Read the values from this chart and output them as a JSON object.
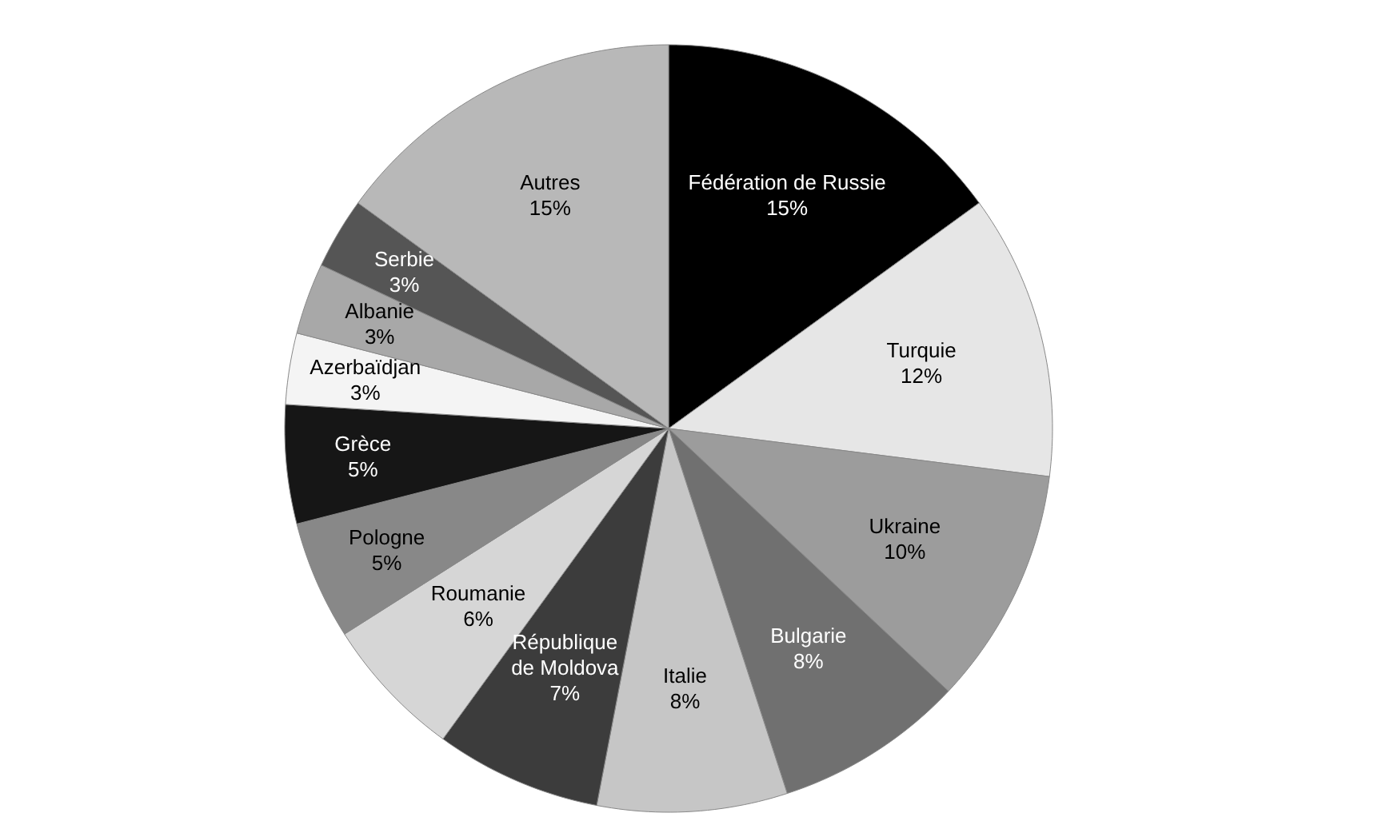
{
  "chart_data": {
    "type": "pie",
    "categories": [
      "Fédération de Russie",
      "Turquie",
      "Ukraine",
      "Bulgarie",
      "Italie",
      "République de Moldova",
      "Roumanie",
      "Pologne",
      "Grèce",
      "Azerbaïdjan",
      "Albanie",
      "Serbie",
      "Autres"
    ],
    "values": [
      15,
      12,
      10,
      8,
      8,
      7,
      6,
      5,
      5,
      3,
      3,
      3,
      15
    ],
    "value_labels": [
      "15%",
      "12%",
      "10%",
      "8%",
      "8%",
      "7%",
      "6%",
      "5%",
      "5%",
      "3%",
      "3%",
      "3%",
      "15%"
    ],
    "colors": [
      "#000000",
      "#e6e6e6",
      "#9c9c9c",
      "#707070",
      "#c6c6c6",
      "#3c3c3c",
      "#d6d6d6",
      "#888888",
      "#161616",
      "#f4f4f4",
      "#a8a8a8",
      "#555555",
      "#b8b8b8"
    ]
  }
}
